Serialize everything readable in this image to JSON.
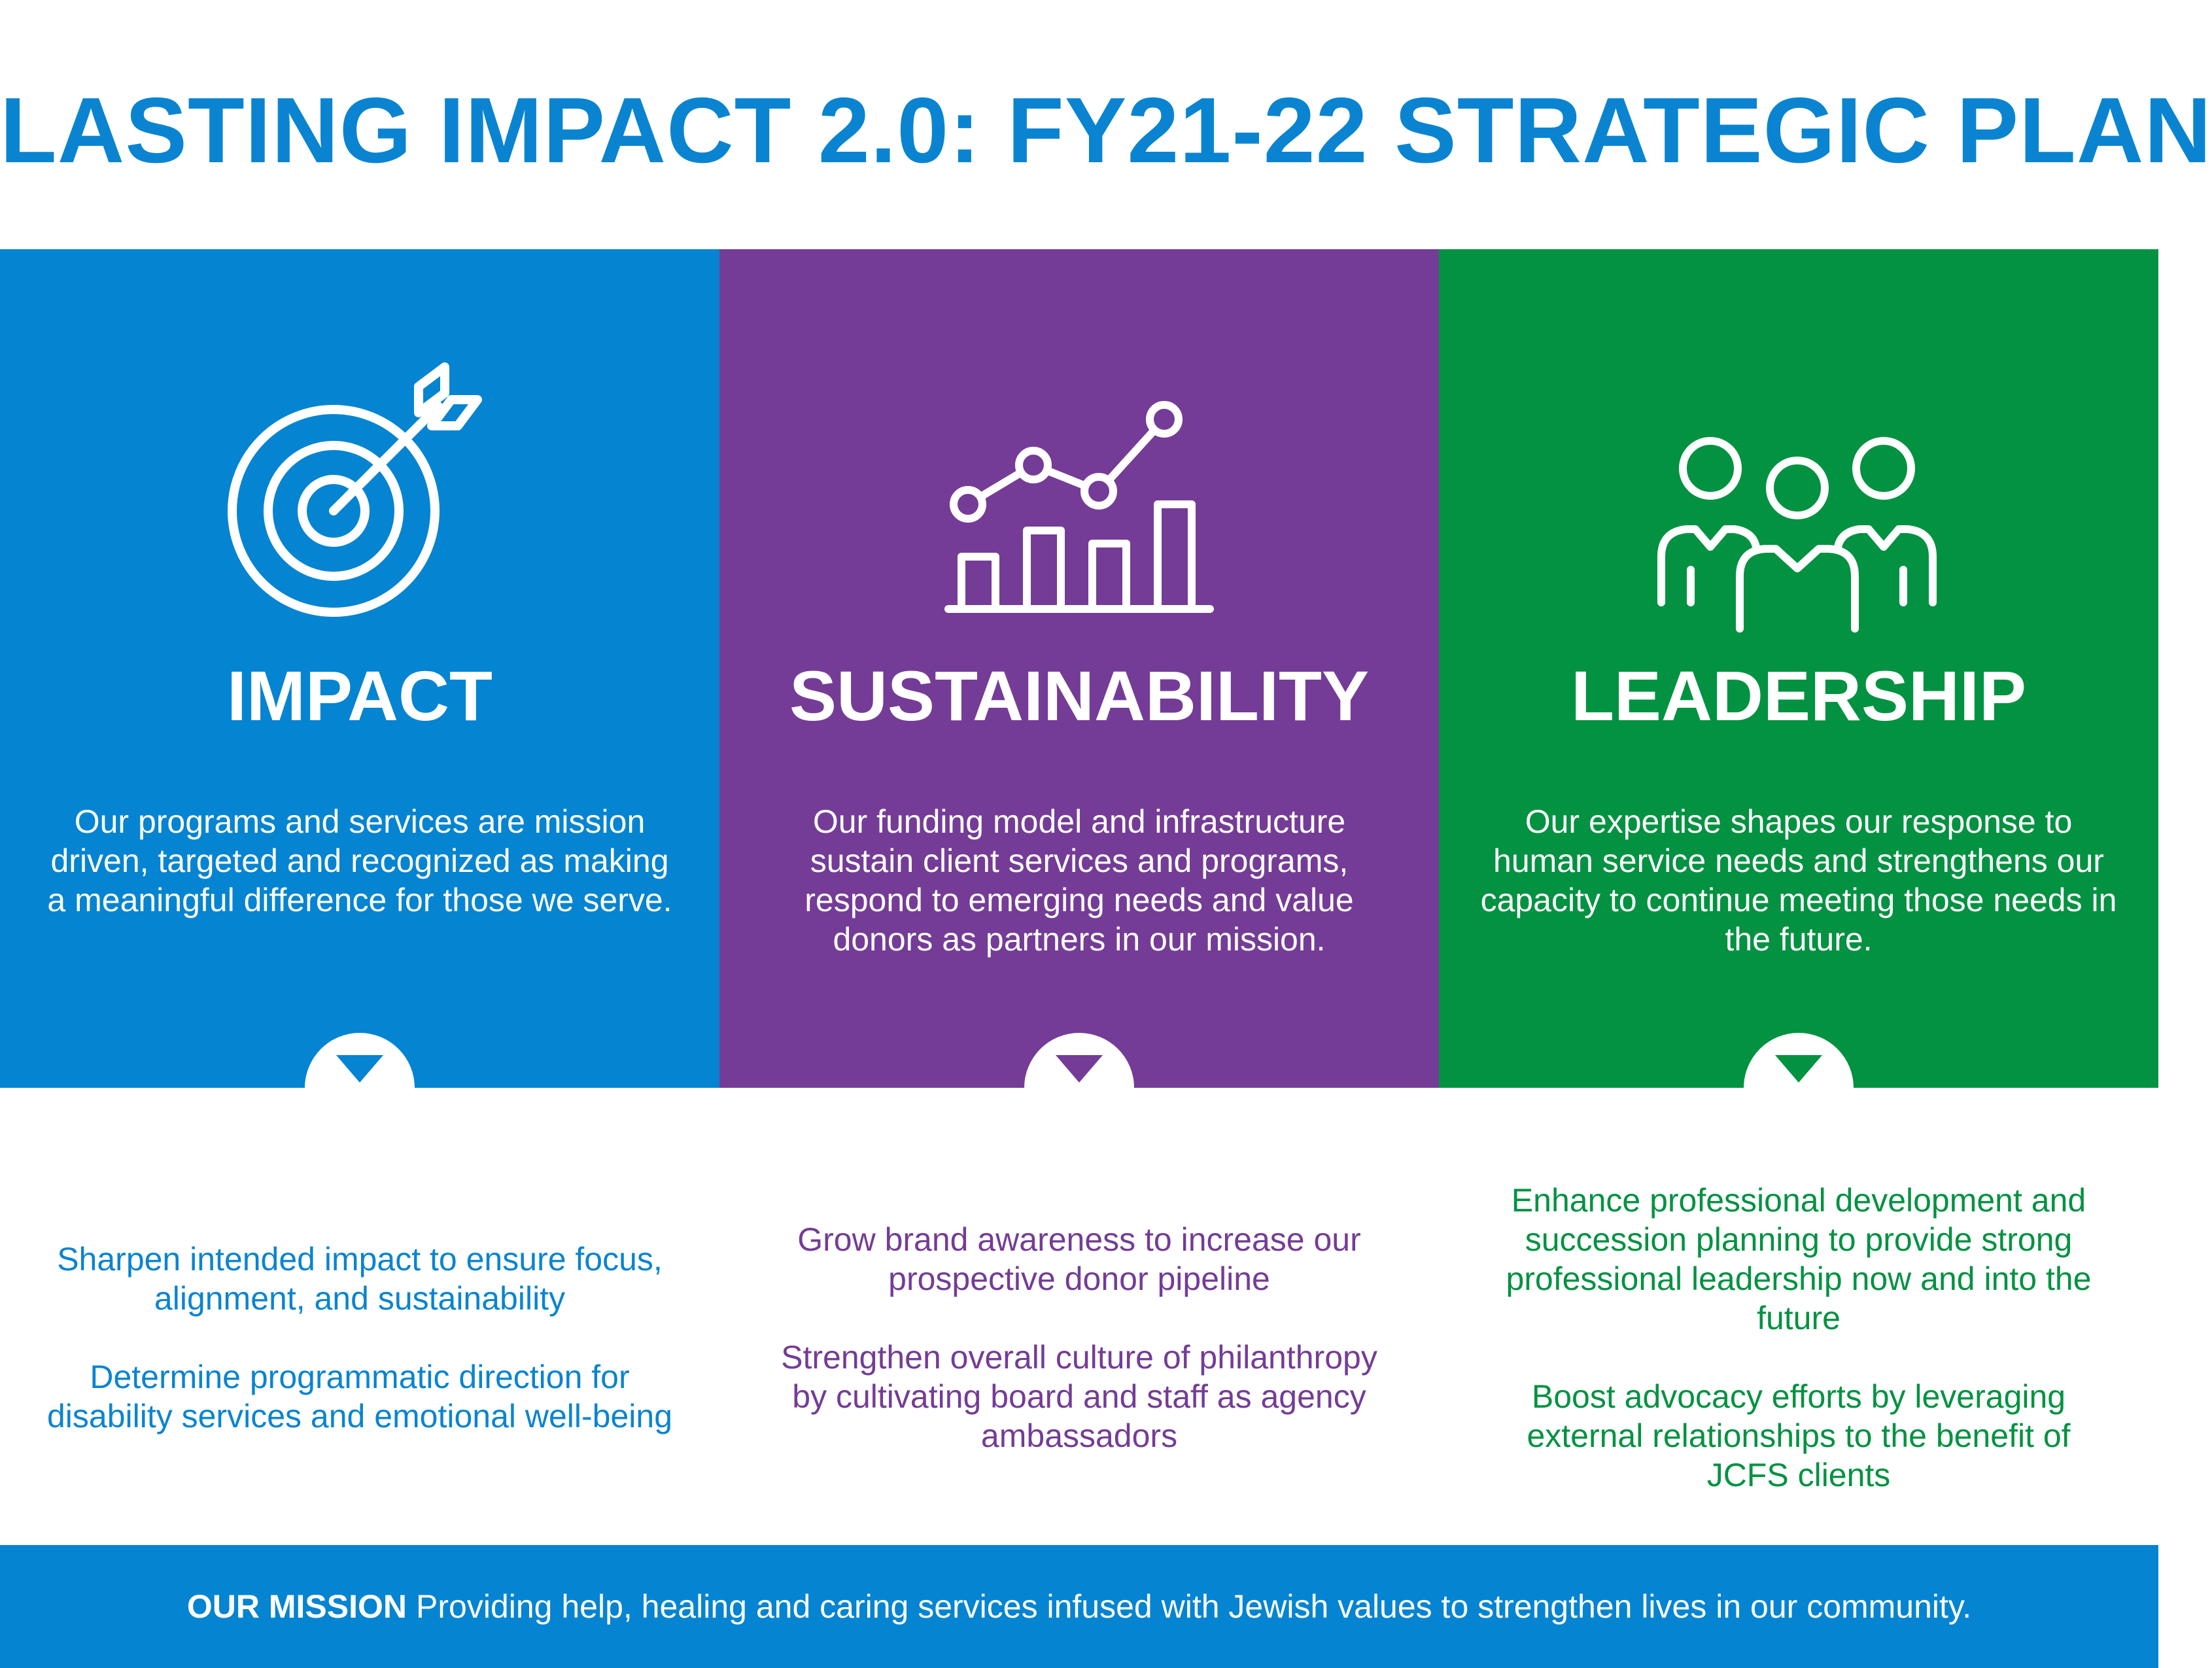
{
  "title": "LASTING IMPACT 2.0: FY21-22 STRATEGIC PLAN",
  "colors": {
    "impact": "#0584d1",
    "sustainability": "#743c96",
    "leadership": "#029241",
    "title": "#0a84d0"
  },
  "pillars": [
    {
      "icon": "target-arrow-icon",
      "heading": "IMPACT",
      "description": "Our programs and services are mission driven, targeted and recognized as making a meaningful difference for those we serve.",
      "goals": [
        "Sharpen intended impact to ensure focus, alignment, and sustainability",
        "Determine programmatic direction for disability services and emotional well-being"
      ]
    },
    {
      "icon": "growth-chart-icon",
      "heading": "SUSTAINABILITY",
      "description": "Our funding model and infrastructure sustain client services and programs, respond to emerging needs and value donors as partners in our mission.",
      "goals": [
        "Grow brand awareness to increase our prospective donor pipeline",
        "Strengthen overall culture of philanthropy by cultivating board and staff as agency ambassadors"
      ]
    },
    {
      "icon": "team-people-icon",
      "heading": "LEADERSHIP",
      "description": "Our expertise shapes our response to human service needs and strengthens our capacity to continue meeting those needs in the future.",
      "goals": [
        "Enhance professional development and succession planning to provide strong professional leadership now and into the future",
        "Boost advocacy efforts by leveraging external relationships to the benefit of JCFS clients"
      ]
    }
  ],
  "footer": {
    "label": "OUR MISSION",
    "text": "Providing help, healing and caring services infused with Jewish values to strengthen lives in our community."
  }
}
